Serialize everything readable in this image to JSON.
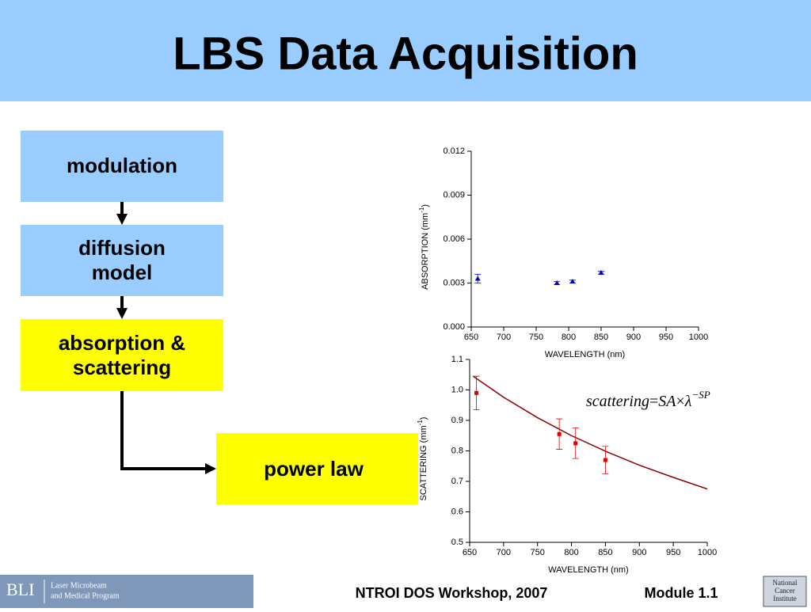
{
  "title": "LBS Data Acquisition",
  "nodes": [
    {
      "label": "modulation"
    },
    {
      "label": "diffusion model"
    },
    {
      "label": "absorption & scattering"
    },
    {
      "label": "power law"
    }
  ],
  "chart_data": [
    {
      "type": "scatter",
      "x": [
        660,
        782,
        806,
        850
      ],
      "values": [
        0.0033,
        0.003,
        0.0031,
        0.0037
      ],
      "errors": [
        0.0003,
        0.0001,
        0.0001,
        0.0001
      ],
      "color": "#0000cc",
      "marker": "triangle",
      "xlabel": "WAVELENGTH (nm)",
      "ylabel": [
        "ABSORPTION (mm",
        "-1",
        ")"
      ],
      "xlim": [
        650,
        1000
      ],
      "xticks": [
        650,
        700,
        750,
        800,
        850,
        900,
        950,
        1000
      ],
      "ylim": [
        0,
        0.012
      ],
      "yticks": [
        {
          "value": 0,
          "label": "0.000"
        },
        0.003,
        0.006,
        0.009,
        0.012
      ]
    },
    {
      "type": "scatter",
      "x": [
        660,
        782,
        806,
        850
      ],
      "values": [
        0.99,
        0.855,
        0.825,
        0.77
      ],
      "errors": [
        0.055,
        0.05,
        0.05,
        0.045
      ],
      "color": "#e00000",
      "marker": "square",
      "fit": {
        "x": [
          655,
          700,
          750,
          800,
          850,
          900,
          950,
          1000
        ],
        "values": [
          1.045,
          0.976,
          0.909,
          0.85,
          0.799,
          0.753,
          0.713,
          0.675
        ],
        "color": "#8b0000"
      },
      "equation": [
        "scattering",
        "=",
        "SA",
        "×",
        "λ",
        "−SP"
      ],
      "xlabel": "WAVELENGTH (nm)",
      "ylabel": [
        "SCATTERING (mm",
        "-1",
        ")"
      ],
      "xlim": [
        650,
        1000
      ],
      "xticks": [
        650,
        700,
        750,
        800,
        850,
        900,
        950,
        1000
      ],
      "ylim": [
        0.5,
        1.1
      ],
      "yticks": [
        0.5,
        0.6,
        0.7,
        0.8,
        0.9,
        {
          "value": 1,
          "label": "1.0"
        },
        1.1
      ]
    }
  ],
  "footer": {
    "logo": "BLI",
    "program": [
      "Laser Microbeam",
      "and Medical Program"
    ],
    "event": "NTROI DOS Workshop, 2007",
    "module": "Module 1.1",
    "institute": [
      "National",
      "Cancer",
      "Institute"
    ]
  }
}
